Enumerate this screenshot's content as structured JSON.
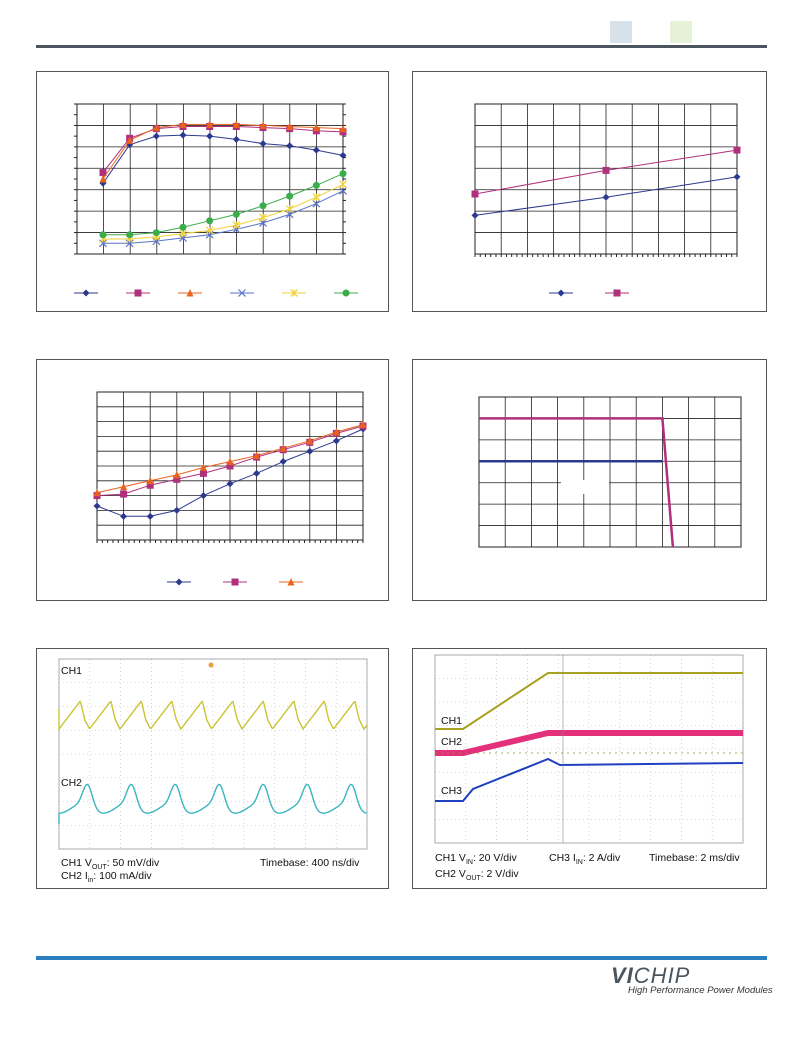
{
  "header": {
    "swatch_colors": [
      "#d7e1ea",
      "#e6f2d8"
    ]
  },
  "chart_data": [
    {
      "type": "line",
      "x": [
        0,
        1,
        2,
        3,
        4,
        5,
        6,
        7,
        8,
        9
      ],
      "ylim": [
        0,
        7
      ],
      "series": [
        {
          "color": "#2b3a8f",
          "marker": "diamond",
          "values": [
            3.3,
            5.1,
            5.5,
            5.55,
            5.5,
            5.35,
            5.15,
            5.05,
            4.85,
            4.6
          ]
        },
        {
          "color": "#b0307e",
          "marker": "square",
          "values": [
            3.8,
            5.4,
            5.85,
            5.95,
            5.95,
            5.95,
            5.9,
            5.85,
            5.75,
            5.7
          ]
        },
        {
          "color": "#e8641e",
          "marker": "triangle",
          "values": [
            3.5,
            5.3,
            5.9,
            6.05,
            6.05,
            6.05,
            6.0,
            5.95,
            5.9,
            5.85
          ]
        },
        {
          "color": "#5a73c8",
          "marker": "x",
          "values": [
            0.5,
            0.5,
            0.6,
            0.75,
            0.9,
            1.15,
            1.45,
            1.85,
            2.35,
            2.95
          ]
        },
        {
          "color": "#f0d23a",
          "marker": "star",
          "values": [
            0.7,
            0.7,
            0.8,
            0.95,
            1.1,
            1.35,
            1.7,
            2.1,
            2.65,
            3.25
          ]
        },
        {
          "color": "#3aad4a",
          "marker": "circle",
          "values": [
            0.9,
            0.9,
            1.0,
            1.25,
            1.55,
            1.85,
            2.25,
            2.7,
            3.2,
            3.75
          ]
        }
      ],
      "grid": true,
      "legend": "bottom"
    },
    {
      "type": "line",
      "x": [
        0,
        1,
        2
      ],
      "ylim": [
        0,
        7
      ],
      "series": [
        {
          "color": "#2b3a8f",
          "marker": "diamond",
          "values": [
            1.8,
            2.65,
            3.6
          ]
        },
        {
          "color": "#b0307e",
          "marker": "square",
          "values": [
            2.8,
            3.9,
            4.85
          ]
        }
      ],
      "grid": true,
      "legend": "bottom"
    },
    {
      "type": "line",
      "x": [
        0,
        1,
        2,
        3,
        4,
        5,
        6,
        7,
        8,
        9,
        10
      ],
      "ylim": [
        0,
        10
      ],
      "series": [
        {
          "color": "#2b3a8f",
          "marker": "diamond",
          "values": [
            2.3,
            1.6,
            1.6,
            2.0,
            3.0,
            3.8,
            4.5,
            5.3,
            6.0,
            6.7,
            7.5
          ]
        },
        {
          "color": "#b0307e",
          "marker": "square",
          "values": [
            3.0,
            3.1,
            3.7,
            4.1,
            4.5,
            5.0,
            5.6,
            6.1,
            6.6,
            7.2,
            7.7
          ]
        },
        {
          "color": "#e8641e",
          "marker": "triangle",
          "values": [
            3.2,
            3.6,
            4.0,
            4.4,
            4.9,
            5.3,
            5.7,
            6.2,
            6.7,
            7.3,
            7.8
          ]
        }
      ],
      "grid": true,
      "legend": "bottom"
    },
    {
      "type": "line",
      "x": [
        0,
        0.5,
        0.6,
        0.65
      ],
      "ylim": [
        0,
        7
      ],
      "series": [
        {
          "color": "#b0307e",
          "x": [
            0,
            0.7,
            0.74
          ],
          "values": [
            6.0,
            6.0,
            0
          ]
        },
        {
          "color": "#2b3a8f",
          "x": [
            0,
            0.7
          ],
          "values": [
            4.0,
            4.0
          ]
        }
      ],
      "grid": true
    }
  ],
  "scope1": {
    "ch1": "CH1",
    "ch2": "CH2",
    "line1": {
      "pre": "CH1 V",
      "sub": "OUT",
      "post": ": 50 mV/div"
    },
    "line2": {
      "pre": "CH2 I",
      "sub": "in",
      "post": ": 100 mA/div"
    },
    "timebase": "Timebase: 400 ns/div"
  },
  "scope2": {
    "ch1": "CH1",
    "ch2": "CH2",
    "ch3": "CH3",
    "line1a": {
      "pre": "CH1 V",
      "sub": "IN",
      "post": ": 20 V/div"
    },
    "line1b": {
      "pre": "CH3 I",
      "sub": "IN",
      "post": ": 2 A/div"
    },
    "timebase": "Timebase: 2 ms/div",
    "line2": {
      "pre": "CH2 V",
      "sub": "OUT",
      "post": ": 2 V/div"
    }
  },
  "footer": {
    "logo_bold": "VI",
    "logo_rest": "CHIP",
    "tagline": "High Performance Power Modules"
  }
}
